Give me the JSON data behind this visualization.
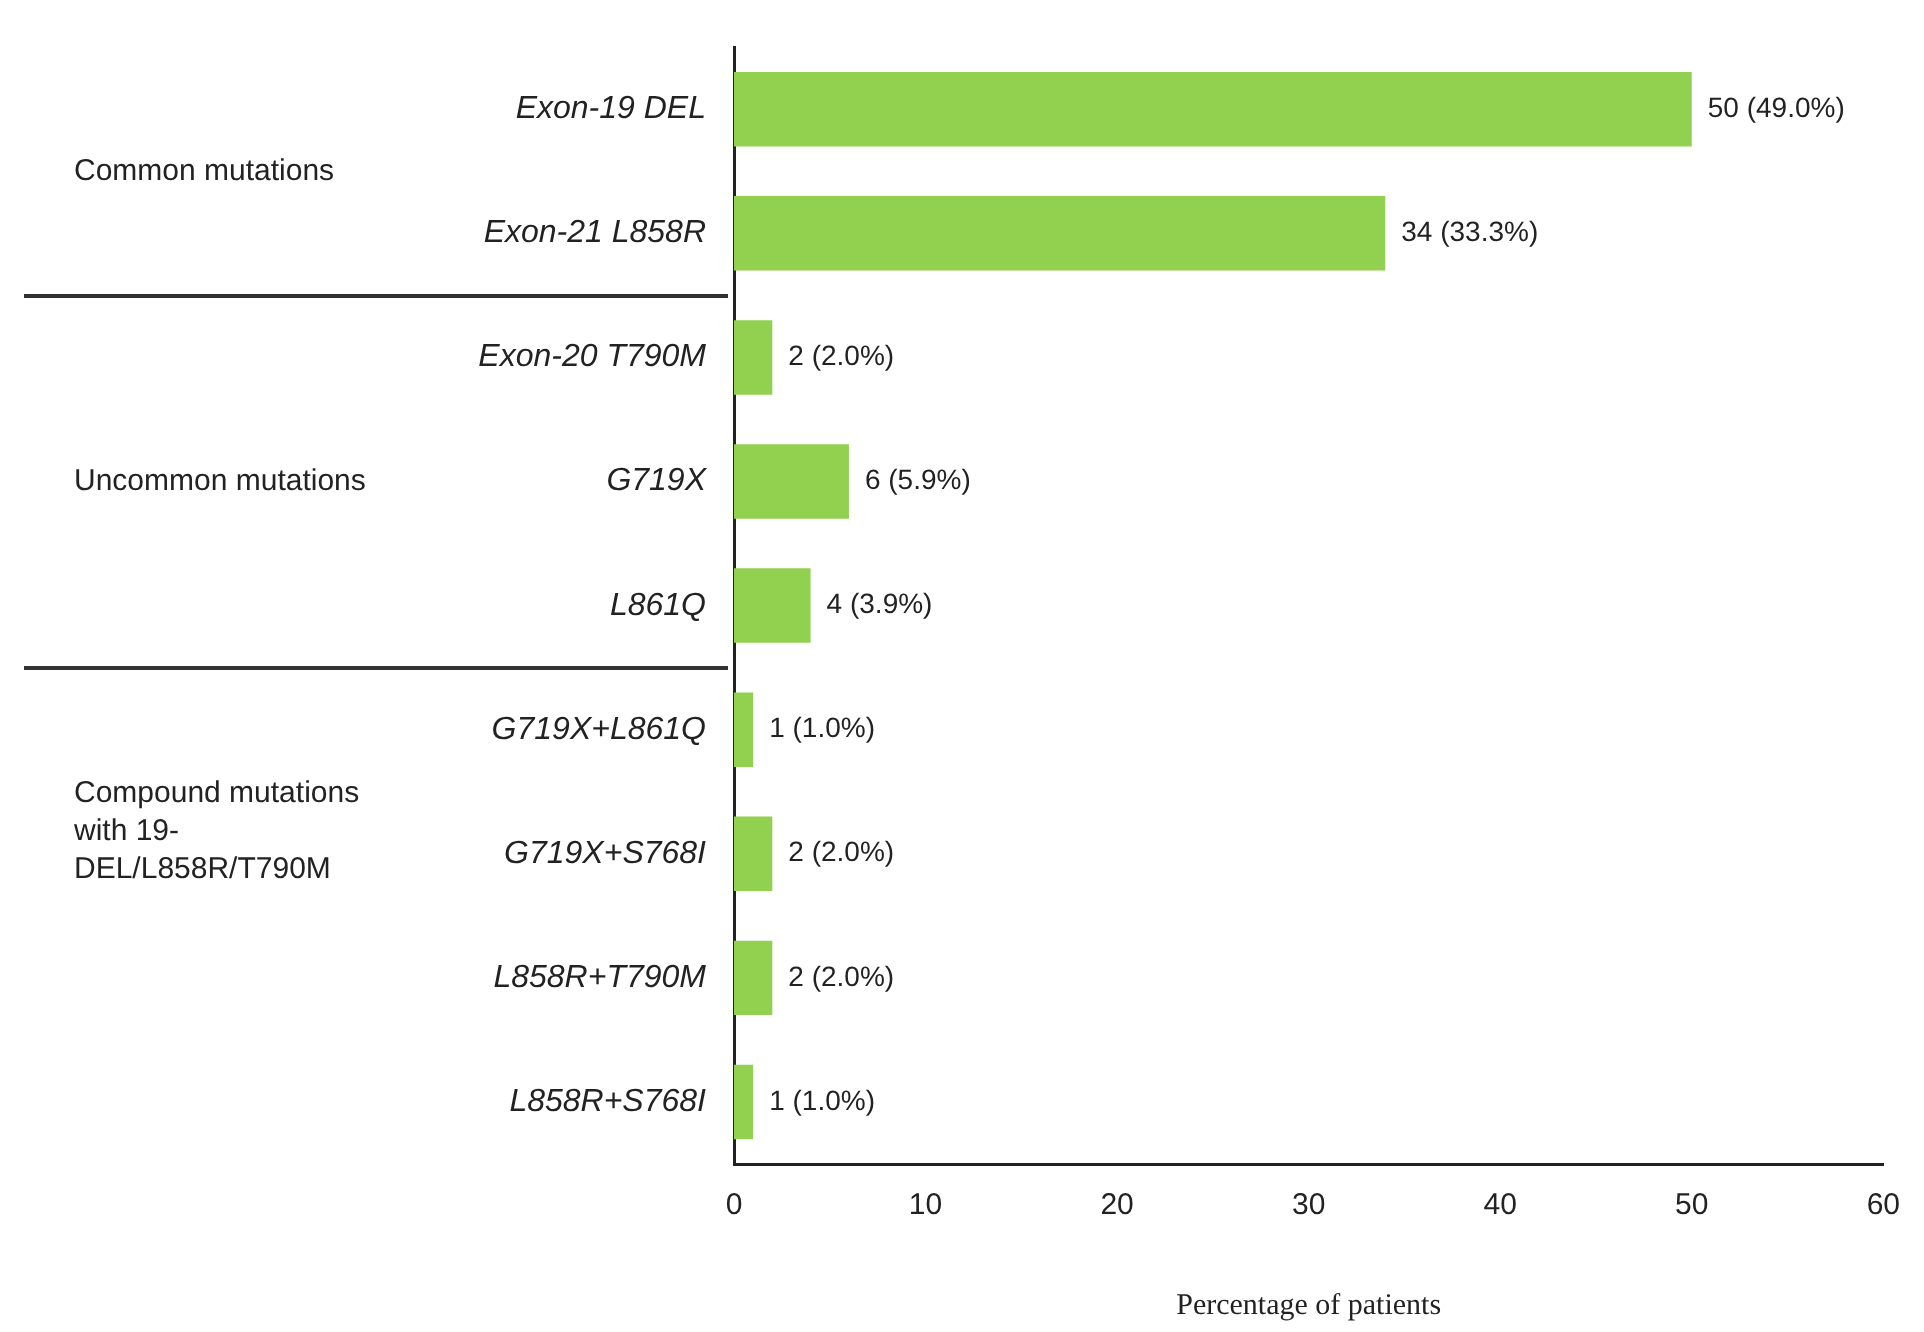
{
  "chart_data": {
    "type": "bar",
    "orientation": "horizontal",
    "xlabel": "Percentage of patients",
    "categories": [
      "Exon-19 DEL",
      "Exon-21 L858R",
      "Exon-20 T790M",
      "G719X",
      "L861Q",
      "G719X+L861Q",
      "G719X+S768I",
      "L858R+T790M",
      "L858R+S768I"
    ],
    "values": [
      50,
      34,
      2,
      6,
      4,
      1,
      2,
      2,
      1
    ],
    "value_labels": [
      "50 (49.0%)",
      "34 (33.3%)",
      "2 (2.0%)",
      "6 (5.9%)",
      "4 (3.9%)",
      "1 (1.0%)",
      "2 (2.0%)",
      "2 (2.0%)",
      "1 (1.0%)"
    ],
    "color": "#92d050",
    "xlim": [
      0,
      60
    ],
    "xticks": [
      0,
      10,
      20,
      30,
      40,
      50,
      60
    ],
    "grid": false,
    "legend": false,
    "annotations": [
      "Common mutations",
      "Uncommon mutations",
      "Compound mutations with 19-DEL/L858R/T790M"
    ]
  }
}
